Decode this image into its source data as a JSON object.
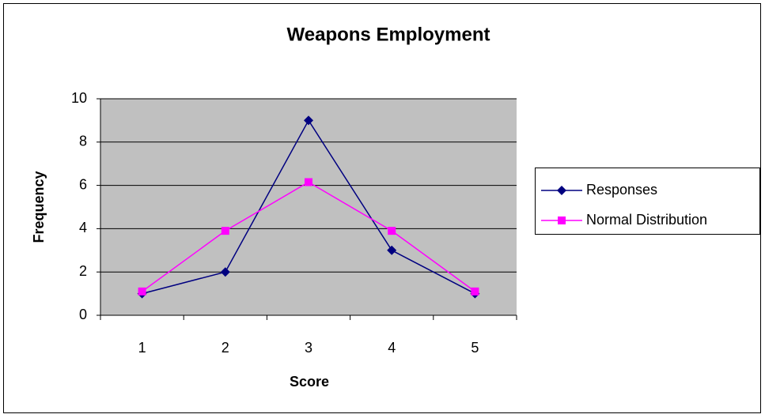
{
  "chart_data": {
    "type": "line",
    "title": "Weapons Employment",
    "x_label": "Score",
    "y_label": "Frequency",
    "categories": [
      "1",
      "2",
      "3",
      "4",
      "5"
    ],
    "series": [
      {
        "name": "Responses",
        "color": "#000080",
        "marker": "diamond",
        "values": [
          1,
          2,
          9,
          3,
          1
        ]
      },
      {
        "name": "Normal Distribution",
        "color": "#ff00ff",
        "marker": "square",
        "values": [
          1.1,
          3.9,
          6.15,
          3.9,
          1.1
        ]
      }
    ],
    "ylim": [
      0,
      10
    ],
    "yticks": [
      0,
      2,
      4,
      6,
      8,
      10
    ],
    "grid": true,
    "legend": "right"
  }
}
